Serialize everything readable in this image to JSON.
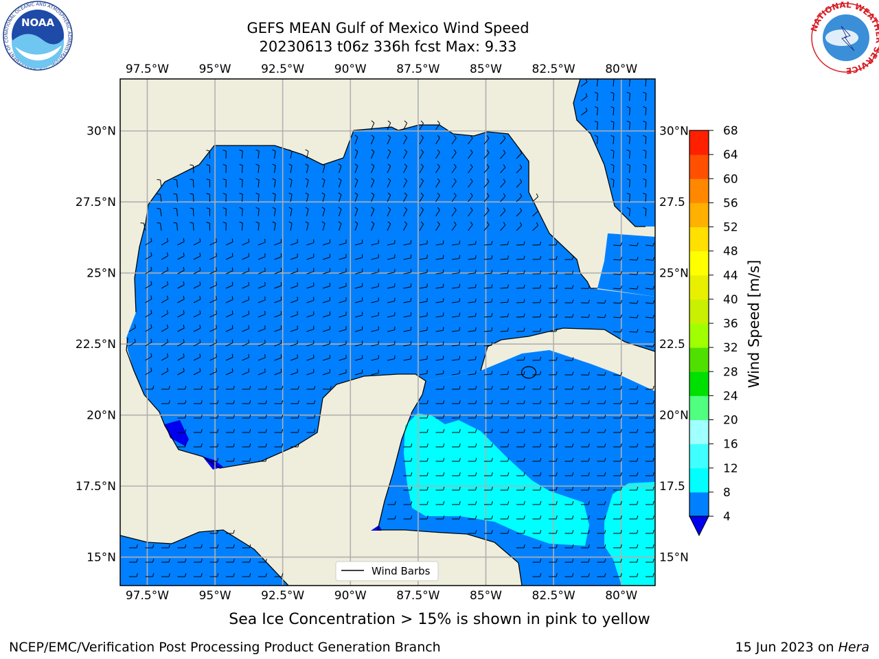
{
  "title": {
    "line1": "GEFS MEAN Gulf of Mexico Wind Speed",
    "line2": "20230613 t06z 336h fcst   Max: 9.33"
  },
  "map": {
    "lon_range": [
      -98.5,
      -78.75
    ],
    "lat_range": [
      14.0,
      31.83
    ],
    "lon_ticks": [
      {
        "value": -97.5,
        "label": "97.5°W"
      },
      {
        "value": -95.0,
        "label": "95°W"
      },
      {
        "value": -92.5,
        "label": "92.5°W"
      },
      {
        "value": -90.0,
        "label": "90°W"
      },
      {
        "value": -87.5,
        "label": "87.5°W"
      },
      {
        "value": -85.0,
        "label": "85°W"
      },
      {
        "value": -82.5,
        "label": "82.5°W"
      },
      {
        "value": -80.0,
        "label": "80°W"
      }
    ],
    "lat_ticks": [
      {
        "value": 30.0,
        "left": "30°N",
        "right": "30°N"
      },
      {
        "value": 27.5,
        "left": "27.5°N",
        "right": "27.5"
      },
      {
        "value": 25.0,
        "left": "25°N",
        "right": "25°N"
      },
      {
        "value": 22.5,
        "left": "22.5°N",
        "right": "22.5"
      },
      {
        "value": 20.0,
        "left": "20°N",
        "right": "20°N"
      },
      {
        "value": 17.5,
        "left": "17.5°N",
        "right": "17.5"
      },
      {
        "value": 15.0,
        "left": "15°N",
        "right": "15°N"
      }
    ],
    "legend_label": "Wind Barbs",
    "land_color": "#efeedd",
    "grid_color": "#b0b0b0",
    "barb_color": "#000000"
  },
  "colorbar": {
    "label": "Wind Speed [m/s]",
    "levels": [
      4,
      8,
      12,
      16,
      20,
      24,
      28,
      32,
      36,
      40,
      44,
      48,
      52,
      56,
      60,
      64,
      68
    ],
    "tick_labels": [
      "4",
      "8",
      "12",
      "16",
      "20",
      "24",
      "28",
      "32",
      "36",
      "40",
      "44",
      "48",
      "52",
      "56",
      "60",
      "64",
      "68"
    ],
    "colors": [
      "#0080ff",
      "#00ffff",
      "#40ffff",
      "#a0ffff",
      "#50ff80",
      "#00e000",
      "#50e000",
      "#a0ff00",
      "#c8f000",
      "#e8f000",
      "#ffff00",
      "#ffe000",
      "#ffb000",
      "#ff8800",
      "#ff5000",
      "#ff2000"
    ],
    "under_color": "#0000ee"
  },
  "note": "Sea Ice Concentration > 15% is shown in pink to yellow",
  "footer": {
    "left": "NCEP/EMC/Verification Post Processing Product Generation Branch",
    "right_prefix": "15 Jun 2023 on ",
    "right_italic": "Hera"
  },
  "logos": {
    "noaa_text": "NOAA",
    "noaa_ring_text": "NATIONAL OCEANIC AND ATMOSPHERIC ADMINISTRATION · U.S. DEPARTMENT OF COMMERCE",
    "nws_ring_text": "NATIONAL WEATHER SERVICE"
  }
}
